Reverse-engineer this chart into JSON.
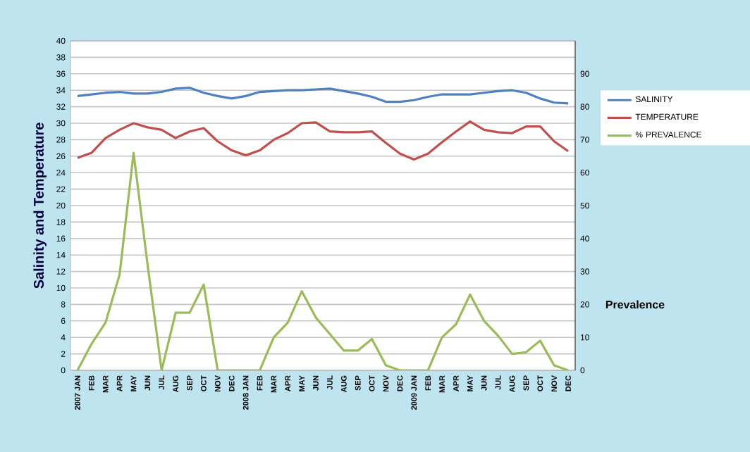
{
  "chart_data": {
    "type": "line",
    "ylabel": "Salinity and Temperature",
    "y2label": "Prevalence",
    "categories": [
      "2007 JAN",
      "FEB",
      "MAR",
      "APR",
      "MAY",
      "JUN",
      "JUL",
      "AUG",
      "SEP",
      "OCT",
      "NOV",
      "DEC",
      "2008 JAN",
      "FEB",
      "MAR",
      "APR",
      "MAY",
      "JUN",
      "JUL",
      "AUG",
      "SEP",
      "OCT",
      "NOV",
      "DEC",
      "2009 JAN",
      "FEB",
      "MAR",
      "APR",
      "MAY",
      "JUN",
      "JUL",
      "AUG",
      "SEP",
      "OCT",
      "NOV",
      "DEC"
    ],
    "series": [
      {
        "name": "SALINITY",
        "color": "#4f81bd",
        "values": [
          33.3,
          33.5,
          33.7,
          33.8,
          33.6,
          33.6,
          33.8,
          34.2,
          34.3,
          33.7,
          33.3,
          33.0,
          33.3,
          33.8,
          33.9,
          34.0,
          34.0,
          34.1,
          34.2,
          33.9,
          33.6,
          33.2,
          32.6,
          32.6,
          32.8,
          33.2,
          33.5,
          33.5,
          33.5,
          33.7,
          33.9,
          34.0,
          33.7,
          33.0,
          32.5,
          32.4
        ]
      },
      {
        "name": "TEMPERATURE",
        "color": "#c0504d",
        "values": [
          25.8,
          26.4,
          28.2,
          29.2,
          30.0,
          29.5,
          29.2,
          28.2,
          29.0,
          29.4,
          27.8,
          26.7,
          26.1,
          26.7,
          28.0,
          28.8,
          30.0,
          30.1,
          29.0,
          28.9,
          28.9,
          29.0,
          27.6,
          26.3,
          25.6,
          26.3,
          27.7,
          29.0,
          30.2,
          29.2,
          28.9,
          28.8,
          29.6,
          29.6,
          27.8,
          26.6
        ]
      },
      {
        "name": "% PREVALENCE",
        "color": "#9bbb59",
        "axis": "y2",
        "values": [
          0,
          8,
          14.5,
          29,
          66,
          32,
          0,
          17.5,
          17.5,
          26,
          0,
          0,
          0,
          0,
          10,
          14.5,
          24,
          16,
          11,
          6,
          6,
          9.5,
          1.5,
          0,
          0,
          0,
          10,
          14,
          23,
          15,
          10.5,
          5,
          5.5,
          9,
          1.5,
          0
        ]
      }
    ],
    "ylim": [
      0,
      40
    ],
    "yticks": [
      0,
      2,
      4,
      6,
      8,
      10,
      12,
      14,
      16,
      18,
      20,
      22,
      24,
      26,
      28,
      30,
      32,
      34,
      36,
      38,
      40
    ],
    "y2lim": [
      0,
      100
    ],
    "y2ticks": [
      0,
      10,
      20,
      30,
      40,
      50,
      60,
      70,
      80,
      90
    ],
    "grid": "y",
    "legend": "right",
    "marker": "none",
    "line_style": "solid"
  }
}
